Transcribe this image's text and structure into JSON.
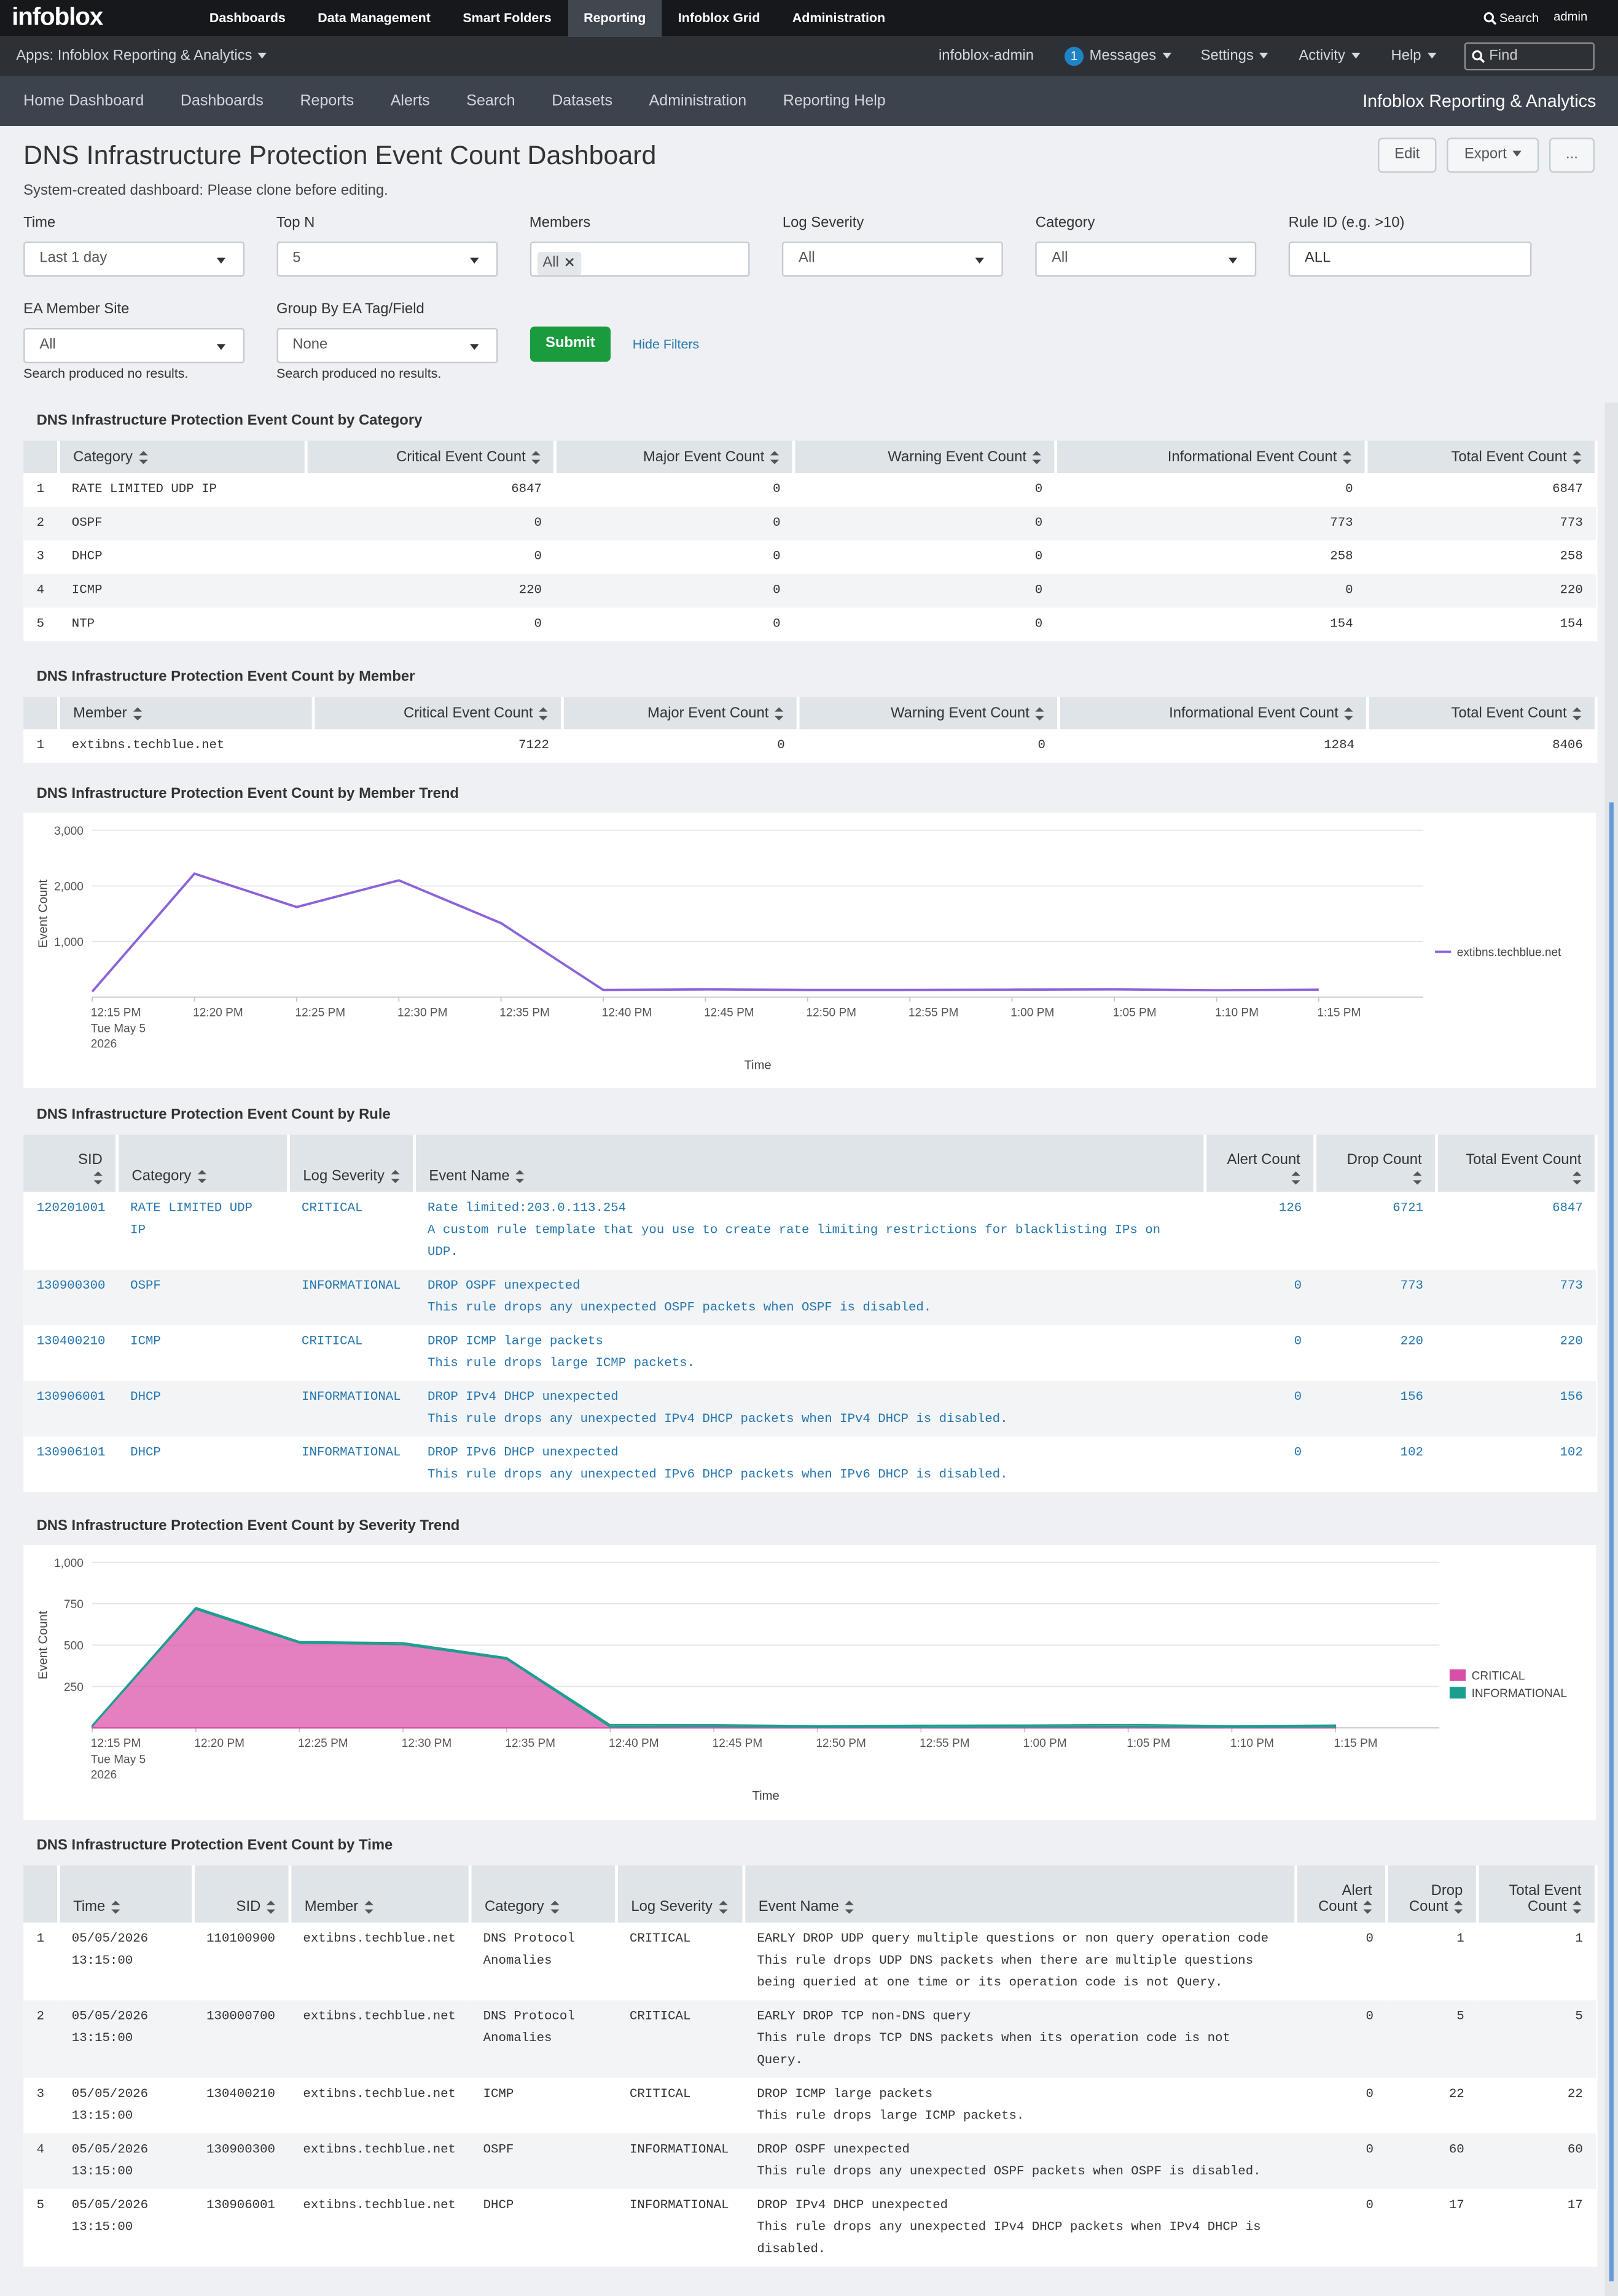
{
  "top_nav": {
    "logo": "infoblox",
    "items": [
      "Dashboards",
      "Data Management",
      "Smart Folders",
      "Reporting",
      "Infoblox Grid",
      "Administration"
    ],
    "search": "Search",
    "user": "admin"
  },
  "app_bar": {
    "app": "Apps: Infoblox Reporting & Analytics",
    "user": "infoblox-admin",
    "message_count": 1,
    "messages": "Messages",
    "menus": [
      "Settings",
      "Activity",
      "Help"
    ],
    "find": "Find"
  },
  "sub_nav": {
    "items": [
      "Home Dashboard",
      "Dashboards",
      "Reports",
      "Alerts",
      "Search",
      "Datasets",
      "Administration",
      "Reporting Help"
    ],
    "brand": "Infoblox Reporting & Analytics"
  },
  "header": {
    "title": "DNS Infrastructure Protection Event Count Dashboard",
    "subtitle": "System-created dashboard: Please clone before editing.",
    "buttons": [
      "Edit",
      "Export",
      "..."
    ]
  },
  "filters": {
    "fields": [
      {
        "label": "Time",
        "value": "Last 1 day",
        "control": "dropdown"
      },
      {
        "label": "Top N",
        "value": "5",
        "control": "dropdown"
      },
      {
        "label": "Members",
        "value": "All",
        "control": "tag"
      },
      {
        "label": "Log Severity",
        "value": "All",
        "control": "dropdown"
      },
      {
        "label": "Category",
        "value": "All",
        "control": "dropdown"
      },
      {
        "label": "Rule ID (e.g. >10)",
        "value": "ALL",
        "control": "text"
      },
      {
        "label": "EA Member Site",
        "value": "All",
        "control": "dropdown",
        "note": "Search produced no results."
      },
      {
        "label": "Group By EA Tag/Field",
        "value": "None",
        "control": "dropdown",
        "note": "Search produced no results."
      }
    ],
    "submit": "Submit",
    "hide_filters": "Hide Filters"
  },
  "category_table": {
    "title": "DNS Infrastructure Protection Event Count by Category",
    "columns": [
      "Category",
      "Critical Event Count",
      "Major Event Count",
      "Warning Event Count",
      "Informational Event Count",
      "Total Event Count"
    ],
    "rows": [
      [
        1,
        "RATE LIMITED UDP IP",
        6847,
        0,
        0,
        0,
        6847
      ],
      [
        2,
        "OSPF",
        0,
        0,
        0,
        773,
        773
      ],
      [
        3,
        "DHCP",
        0,
        0,
        0,
        258,
        258
      ],
      [
        4,
        "ICMP",
        220,
        0,
        0,
        0,
        220
      ],
      [
        5,
        "NTP",
        0,
        0,
        0,
        154,
        154
      ]
    ]
  },
  "member_table": {
    "title": "DNS Infrastructure Protection Event Count by Member",
    "columns": [
      "Member",
      "Critical Event Count",
      "Major Event Count",
      "Warning Event Count",
      "Informational Event Count",
      "Total Event Count"
    ],
    "rows": [
      [
        1,
        "extibns.techblue.net",
        7122,
        0,
        0,
        1284,
        8406
      ]
    ]
  },
  "member_trend": {
    "title": "DNS Infrastructure Protection Event Count by Member Trend",
    "chart_data": {
      "type": "line",
      "x": [
        "12:15 PM",
        "12:20 PM",
        "12:25 PM",
        "12:30 PM",
        "12:35 PM",
        "12:40 PM",
        "12:45 PM",
        "12:50 PM",
        "12:55 PM",
        "1:00 PM",
        "1:05 PM",
        "1:10 PM",
        "1:15 PM"
      ],
      "x_date": [
        "Tue May 5",
        "2026"
      ],
      "x_label": "Time",
      "y_label": "Event Count",
      "ylim": [
        0,
        3000
      ],
      "yticks": [
        {
          "value": 1000,
          "label": "1,000"
        },
        {
          "value": 2000,
          "label": "2,000"
        },
        {
          "value": 3000,
          "label": "3,000"
        }
      ],
      "grid": true,
      "legend": "right",
      "series": [
        {
          "name": "extibns.techblue.net",
          "color": "#8b63d9",
          "values": [
            100,
            2220,
            1620,
            2100,
            1330,
            130,
            140,
            130,
            130,
            135,
            140,
            125,
            135
          ]
        }
      ]
    }
  },
  "rule_table": {
    "title": "DNS Infrastructure Protection Event Count by Rule",
    "columns": [
      "SID",
      "Category",
      "Log Severity",
      "Event Name",
      "Alert Count",
      "Drop Count",
      "Total Event Count"
    ],
    "rows": [
      [
        "120201001",
        "RATE LIMITED UDP IP",
        "CRITICAL",
        [
          "Rate limited:203.0.113.254",
          "A custom rule template that you use to create rate limiting restrictions for blacklisting IPs on UDP."
        ],
        126,
        6721,
        6847
      ],
      [
        "130900300",
        "OSPF",
        "INFORMATIONAL",
        [
          "DROP OSPF unexpected",
          "This rule drops any unexpected OSPF packets when OSPF is disabled."
        ],
        0,
        773,
        773
      ],
      [
        "130400210",
        "ICMP",
        "CRITICAL",
        [
          "DROP ICMP large packets",
          "This rule drops large ICMP packets."
        ],
        0,
        220,
        220
      ],
      [
        "130906001",
        "DHCP",
        "INFORMATIONAL",
        [
          "DROP IPv4 DHCP unexpected",
          "This rule drops any unexpected IPv4 DHCP packets when IPv4 DHCP is disabled."
        ],
        0,
        156,
        156
      ],
      [
        "130906101",
        "DHCP",
        "INFORMATIONAL",
        [
          "DROP IPv6 DHCP unexpected",
          "This rule drops any unexpected IPv6 DHCP packets when IPv6 DHCP is disabled."
        ],
        0,
        102,
        102
      ]
    ]
  },
  "severity_trend": {
    "title": "DNS Infrastructure Protection Event Count by Severity Trend",
    "chart_data": {
      "type": "area",
      "stacked": true,
      "x": [
        "12:15 PM",
        "12:20 PM",
        "12:25 PM",
        "12:30 PM",
        "12:35 PM",
        "12:40 PM",
        "12:45 PM",
        "12:50 PM",
        "12:55 PM",
        "1:00 PM",
        "1:05 PM",
        "1:10 PM",
        "1:15 PM"
      ],
      "x_date": [
        "Tue May 5",
        "2026"
      ],
      "x_label": "Time",
      "y_label": "Event Count",
      "ylim": [
        0,
        1000
      ],
      "yticks": [
        250,
        500,
        750,
        {
          "value": 1000,
          "label": "1,000"
        }
      ],
      "grid": true,
      "legend": "right",
      "series": [
        {
          "name": "CRITICAL",
          "color": "#d94fa8",
          "values": [
            10,
            717,
            513,
            504,
            416,
            6,
            8,
            5,
            5,
            6,
            7,
            5,
            6
          ]
        },
        {
          "name": "INFORMATIONAL",
          "color": "#1b9e8f",
          "values": [
            5,
            10,
            8,
            10,
            8,
            12,
            10,
            8,
            10,
            10,
            12,
            8,
            10
          ]
        }
      ]
    }
  },
  "time_table": {
    "title": "DNS Infrastructure Protection Event Count by Time",
    "columns": [
      "Time",
      "SID",
      "Member",
      "Category",
      "Log Severity",
      "Event Name",
      "Alert Count",
      "Drop Count",
      "Total Event Count"
    ],
    "rows": [
      [
        1,
        "05/05/2026 13:15:00",
        "110100900",
        "extibns.techblue.net",
        "DNS Protocol Anomalies",
        "CRITICAL",
        [
          "EARLY DROP UDP query multiple questions or non query operation code",
          "This rule drops UDP DNS packets when there are multiple questions being queried at one time or its operation code is not Query."
        ],
        0,
        1,
        1
      ],
      [
        2,
        "05/05/2026 13:15:00",
        "130000700",
        "extibns.techblue.net",
        "DNS Protocol Anomalies",
        "CRITICAL",
        [
          "EARLY DROP TCP non-DNS query",
          "This rule drops TCP DNS packets when its operation code is not Query."
        ],
        0,
        5,
        5
      ],
      [
        3,
        "05/05/2026 13:15:00",
        "130400210",
        "extibns.techblue.net",
        "ICMP",
        "CRITICAL",
        [
          "DROP ICMP large packets",
          "This rule drops large ICMP packets."
        ],
        0,
        22,
        22
      ],
      [
        4,
        "05/05/2026 13:15:00",
        "130900300",
        "extibns.techblue.net",
        "OSPF",
        "INFORMATIONAL",
        [
          "DROP OSPF unexpected",
          "This rule drops any unexpected OSPF packets when OSPF is disabled."
        ],
        0,
        60,
        60
      ],
      [
        5,
        "05/05/2026 13:15:00",
        "130906001",
        "extibns.techblue.net",
        "DHCP",
        "INFORMATIONAL",
        [
          "DROP IPv4 DHCP unexpected",
          "This rule drops any unexpected IPv4 DHCP packets when IPv4 DHCP is disabled."
        ],
        0,
        17,
        17
      ]
    ]
  }
}
